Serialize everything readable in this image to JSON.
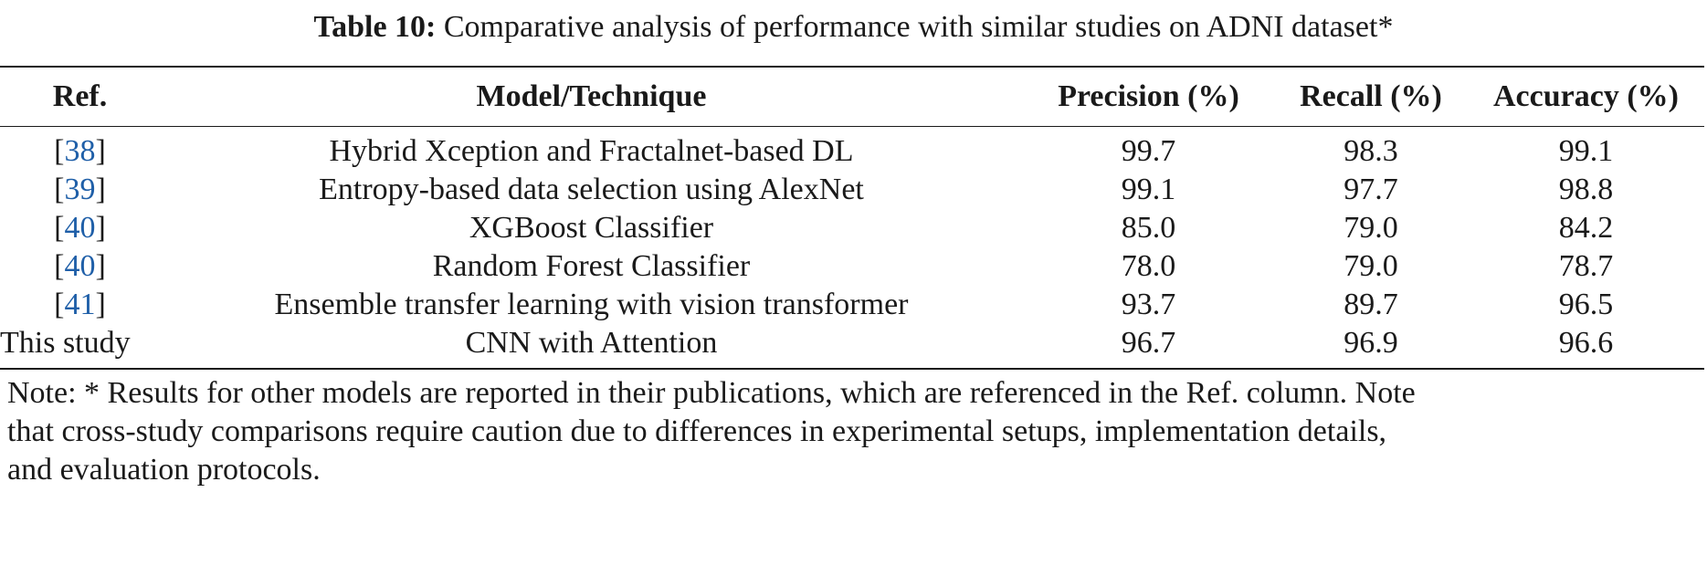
{
  "caption": {
    "label": "Table 10:",
    "text": "Comparative analysis of performance with similar studies on ADNI dataset*"
  },
  "table": {
    "headers": {
      "ref": "Ref.",
      "model": "Model/Technique",
      "precision": "Precision (%)",
      "recall": "Recall (%)",
      "accuracy": "Accuracy (%)"
    },
    "rows": [
      {
        "ref": "38",
        "model": "Hybrid Xception and Fractalnet-based DL",
        "precision": "99.7",
        "recall": "98.3",
        "accuracy": "99.1"
      },
      {
        "ref": "39",
        "model": "Entropy-based data selection using AlexNet",
        "precision": "99.1",
        "recall": "97.7",
        "accuracy": "98.8"
      },
      {
        "ref": "40",
        "model": "XGBoost Classifier",
        "precision": "85.0",
        "recall": "79.0",
        "accuracy": "84.2"
      },
      {
        "ref": "40",
        "model": "Random Forest Classifier",
        "precision": "78.0",
        "recall": "79.0",
        "accuracy": "78.7"
      },
      {
        "ref": "41",
        "model": "Ensemble transfer learning with vision transformer",
        "precision": "93.7",
        "recall": "89.7",
        "accuracy": "96.5"
      },
      {
        "ref_text": "This study",
        "model": "CNN with Attention",
        "precision": "96.7",
        "recall": "96.9",
        "accuracy": "96.6"
      }
    ]
  },
  "note": {
    "line1": "Note: * Results for other models are reported in their publications, which are referenced in the Ref. column. Note",
    "line2": "that cross-study comparisons require caution due to differences in experimental setups, implementation details,",
    "line3": "and evaluation protocols."
  },
  "colors": {
    "text": "#1a1a1a",
    "link": "#1f5fa8"
  }
}
